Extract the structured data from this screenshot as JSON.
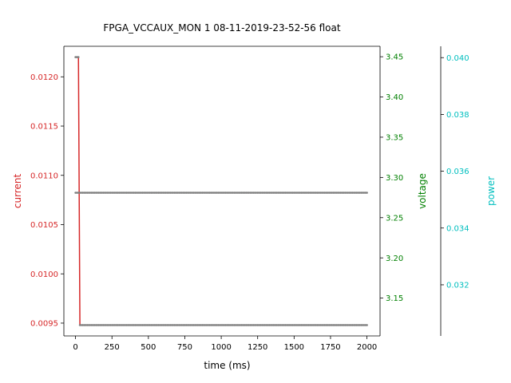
{
  "chart_data": {
    "type": "line",
    "title": "FPGA_VCCAUX_MON   1   08-11-2019-23-52-56   float",
    "xlabel": "time (ms)",
    "xlim": [
      -80,
      2090
    ],
    "x_ticks": [
      0,
      250,
      500,
      750,
      1000,
      1250,
      1500,
      1750,
      2000
    ],
    "grid": false,
    "axes": [
      {
        "name": "current",
        "label": "current",
        "color": "#d62728",
        "side": "left",
        "ylim": [
          0.00937,
          0.01231
        ],
        "ticks": [
          0.0095,
          0.01,
          0.0105,
          0.011,
          0.0115,
          0.012
        ],
        "tick_labels": [
          "0.0095",
          "0.0100",
          "0.0105",
          "0.0110",
          "0.0115",
          "0.0120"
        ]
      },
      {
        "name": "voltage",
        "label": "voltage",
        "color": "#008000",
        "side": "right",
        "ylim": [
          3.103,
          3.463
        ],
        "ticks": [
          3.15,
          3.2,
          3.25,
          3.3,
          3.35,
          3.4,
          3.45
        ],
        "tick_labels": [
          "3.15",
          "3.20",
          "3.25",
          "3.30",
          "3.35",
          "3.40",
          "3.45"
        ]
      },
      {
        "name": "power",
        "label": "power",
        "color": "#00bfbf",
        "side": "right-outer",
        "ylim": [
          0.0302,
          0.0404
        ],
        "ticks": [
          0.032,
          0.034,
          0.036,
          0.038,
          0.04
        ],
        "tick_labels": [
          "0.032",
          "0.034",
          "0.036",
          "0.038",
          "0.040"
        ]
      }
    ],
    "series": [
      {
        "axis": "current",
        "color": "#d62728",
        "marker_color": "#808080",
        "x_start": 0,
        "x_end": 2000,
        "x_step": 10,
        "initial_value": 0.0122,
        "initial_until": 20,
        "steady_value": 0.00948
      },
      {
        "axis": "voltage",
        "color": "#008000",
        "marker_color": "#808080",
        "x_start": 0,
        "x_end": 2000,
        "x_step": 10,
        "steady_value": 3.281
      }
    ]
  }
}
